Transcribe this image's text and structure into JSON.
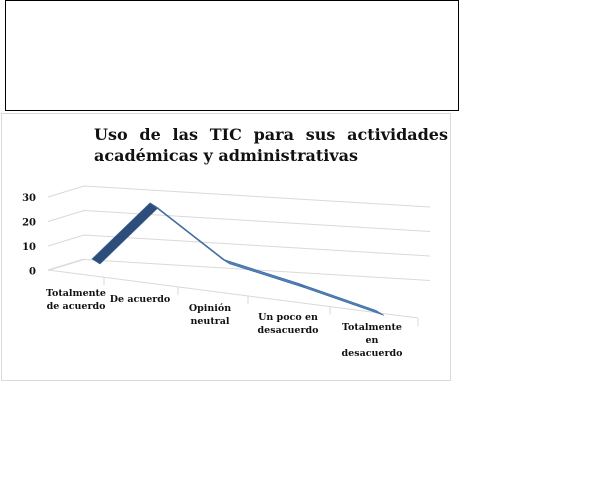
{
  "chart_data": {
    "type": "line",
    "title": "Uso de las TIC para sus actividades académicas y administrativas",
    "categories": [
      [
        "Totalmente",
        "de acuerdo"
      ],
      [
        "De acuerdo"
      ],
      [
        "Opinión",
        "neutral"
      ],
      [
        "Un poco en",
        "desacuerdo"
      ],
      [
        "Totalmente",
        "en",
        "desacuerdo"
      ]
    ],
    "series": [
      {
        "values": [
          0,
          27,
          9,
          4,
          -3
        ]
      }
    ],
    "yticks": [
      "30",
      "20",
      "10",
      "0"
    ],
    "ylim": [
      0,
      30
    ],
    "style": "3d-line",
    "grid": true,
    "colors": {
      "ribbon": "#4f81bd",
      "ribbon_dark": "#2d4e7a",
      "grid": "#d9d9d9"
    }
  }
}
